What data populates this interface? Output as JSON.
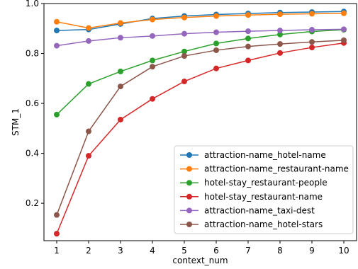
{
  "chart_data": {
    "type": "line",
    "title": "",
    "xlabel": "context_num",
    "ylabel": "STM_1",
    "xlim": [
      0.6,
      10.4
    ],
    "ylim": [
      0.05,
      1.0
    ],
    "xticks": [
      1,
      2,
      3,
      4,
      5,
      6,
      7,
      8,
      9,
      10
    ],
    "yticks": [
      0.2,
      0.4,
      0.6,
      0.8,
      1.0
    ],
    "ytick_labels": [
      "0.2",
      "0.4",
      "0.6",
      "0.8",
      "1.0"
    ],
    "grid": false,
    "legend_position": "lower-right",
    "x": [
      1,
      2,
      3,
      4,
      5,
      6,
      7,
      8,
      9,
      10
    ],
    "series": [
      {
        "name": "attraction-name_hotel-name",
        "color": "#1f77b4",
        "values": [
          0.892,
          0.896,
          0.918,
          0.94,
          0.95,
          0.956,
          0.96,
          0.964,
          0.966,
          0.968
        ]
      },
      {
        "name": "attraction-name_restaurant-name",
        "color": "#ff7f0e",
        "values": [
          0.927,
          0.902,
          0.922,
          0.936,
          0.944,
          0.95,
          0.954,
          0.957,
          0.959,
          0.961
        ]
      },
      {
        "name": "hotel-stay_restaurant-people",
        "color": "#2ca02c",
        "values": [
          0.555,
          0.678,
          0.728,
          0.772,
          0.808,
          0.84,
          0.86,
          0.876,
          0.888,
          0.895
        ]
      },
      {
        "name": "hotel-stay_restaurant-name",
        "color": "#d62728",
        "values": [
          0.078,
          0.39,
          0.535,
          0.618,
          0.688,
          0.74,
          0.772,
          0.802,
          0.824,
          0.842
        ]
      },
      {
        "name": "attraction-name_taxi-dest",
        "color": "#9467bd",
        "values": [
          0.831,
          0.85,
          0.863,
          0.87,
          0.879,
          0.885,
          0.889,
          0.892,
          0.895,
          0.897
        ]
      },
      {
        "name": "attraction-name_hotel-stars",
        "color": "#8c564b",
        "values": [
          0.153,
          0.488,
          0.668,
          0.747,
          0.79,
          0.813,
          0.828,
          0.838,
          0.846,
          0.853
        ]
      }
    ]
  }
}
